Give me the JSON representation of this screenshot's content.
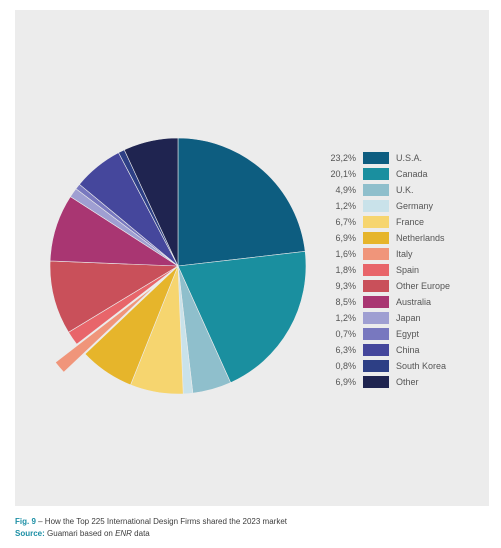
{
  "caption": {
    "fig_label": "Fig. 9",
    "fig_text": " – How the Top 225 International Design Firms shared the 2023 market",
    "source_label": "Source:",
    "source_text": " Guamari based on ",
    "source_em": "ENR",
    "source_tail": " data"
  },
  "chart_data": {
    "type": "pie",
    "title": "",
    "legend_position": "right",
    "slices": [
      {
        "label": "U.S.A.",
        "value": 23.2,
        "value_label": "23,2%",
        "color": "#0d5d80"
      },
      {
        "label": "Canada",
        "value": 20.1,
        "value_label": "20,1%",
        "color": "#1a8f9f"
      },
      {
        "label": "U.K.",
        "value": 4.9,
        "value_label": "4,9%",
        "color": "#8fbfcc"
      },
      {
        "label": "Germany",
        "value": 1.2,
        "value_label": "1,2%",
        "color": "#c9e2ea"
      },
      {
        "label": "France",
        "value": 6.7,
        "value_label": "6,7%",
        "color": "#f6d56f"
      },
      {
        "label": "Netherlands",
        "value": 6.9,
        "value_label": "6,9%",
        "color": "#e6b52b"
      },
      {
        "label": "Italy",
        "value": 1.6,
        "value_label": "1,6%",
        "color": "#f0957a",
        "exploded": true
      },
      {
        "label": "Spain",
        "value": 1.8,
        "value_label": "1,8%",
        "color": "#e8656a"
      },
      {
        "label": "Other Europe",
        "value": 9.3,
        "value_label": "9,3%",
        "color": "#c9505a"
      },
      {
        "label": "Australia",
        "value": 8.5,
        "value_label": "8,5%",
        "color": "#a93672"
      },
      {
        "label": "Japan",
        "value": 1.2,
        "value_label": "1,2%",
        "color": "#9f9fd2"
      },
      {
        "label": "Egypt",
        "value": 0.7,
        "value_label": "0,7%",
        "color": "#7878bf"
      },
      {
        "label": "China",
        "value": 6.3,
        "value_label": "6,3%",
        "color": "#45479c"
      },
      {
        "label": "South Korea",
        "value": 0.8,
        "value_label": "0,8%",
        "color": "#2d3f85"
      },
      {
        "label": "Other",
        "value": 6.9,
        "value_label": "6,9%",
        "color": "#1f2450"
      }
    ]
  }
}
